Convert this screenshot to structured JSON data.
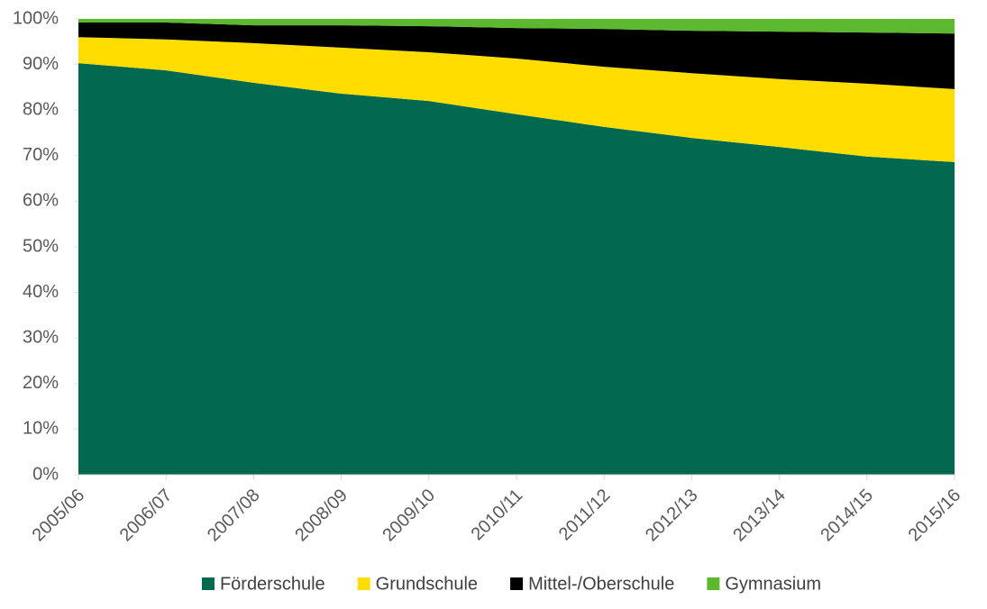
{
  "chart_data": {
    "type": "stacked_area",
    "categories": [
      "2005/06",
      "2006/07",
      "2007/08",
      "2008/09",
      "2009/10",
      "2010/11",
      "2011/12",
      "2012/13",
      "2013/14",
      "2014/15",
      "2015/16"
    ],
    "series": [
      {
        "name": "Förderschule",
        "color": "#006950",
        "values": [
          90.3,
          88.7,
          86.0,
          83.6,
          82.0,
          79.1,
          76.3,
          73.9,
          71.9,
          69.8,
          68.6
        ]
      },
      {
        "name": "Grundschule",
        "color": "#ffdd00",
        "values": [
          5.7,
          6.8,
          8.7,
          10.1,
          10.7,
          12.2,
          13.2,
          14.2,
          14.9,
          16.0,
          16.0
        ]
      },
      {
        "name": "Mittel-/Oberschule",
        "color": "#000000",
        "values": [
          3.2,
          3.7,
          3.9,
          4.9,
          5.7,
          6.7,
          8.3,
          9.3,
          10.4,
          11.2,
          12.2
        ]
      },
      {
        "name": "Gymnasium",
        "color": "#5cb82e",
        "values": [
          0.8,
          0.8,
          1.4,
          1.4,
          1.6,
          2.0,
          2.2,
          2.6,
          2.8,
          3.0,
          3.2
        ]
      }
    ],
    "ylim": [
      0,
      100
    ],
    "yticks": [
      {
        "value": 0,
        "label": "0%"
      },
      {
        "value": 10,
        "label": "10%"
      },
      {
        "value": 20,
        "label": "20%"
      },
      {
        "value": 30,
        "label": "30%"
      },
      {
        "value": 40,
        "label": "40%"
      },
      {
        "value": 50,
        "label": "50%"
      },
      {
        "value": 60,
        "label": "60%"
      },
      {
        "value": 70,
        "label": "70%"
      },
      {
        "value": 80,
        "label": "80%"
      },
      {
        "value": 90,
        "label": "90%"
      },
      {
        "value": 100,
        "label": "100%"
      }
    ],
    "legend": "bottom"
  }
}
